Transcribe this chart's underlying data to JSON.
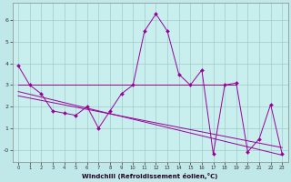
{
  "xlabel": "Windchill (Refroidissement éolien,°C)",
  "bg_color": "#c0e8e8",
  "plot_bg": "#c8eeee",
  "line_color": "#990099",
  "grid_color": "#a0cccc",
  "main_line_x": [
    0,
    1,
    2,
    3,
    4,
    5,
    6,
    7,
    8,
    9,
    10,
    11,
    12,
    13,
    14,
    15,
    16,
    17,
    18,
    19,
    20,
    21,
    22,
    23
  ],
  "main_line_y": [
    3.9,
    3.0,
    2.6,
    1.8,
    1.7,
    1.6,
    2.0,
    1.0,
    1.8,
    2.6,
    3.0,
    5.5,
    6.3,
    5.5,
    3.5,
    3.0,
    3.7,
    -0.2,
    3.0,
    3.1,
    -0.1,
    0.5,
    2.1,
    -0.2
  ],
  "flat_line_x": [
    0,
    19
  ],
  "flat_line_y": [
    3.0,
    3.0
  ],
  "slope_line1_x": [
    0,
    23
  ],
  "slope_line1_y": [
    2.7,
    -0.25
  ],
  "slope_line2_x": [
    0,
    23
  ],
  "slope_line2_y": [
    2.5,
    0.1
  ],
  "ylim": [
    -0.55,
    6.8
  ],
  "xlim": [
    -0.5,
    23.5
  ],
  "yticks": [
    0,
    1,
    2,
    3,
    4,
    5,
    6
  ],
  "ytick_labels": [
    "-0",
    "1",
    "2",
    "3",
    "4",
    "5",
    "6"
  ],
  "xticks": [
    0,
    1,
    2,
    3,
    4,
    5,
    6,
    7,
    8,
    9,
    10,
    11,
    12,
    13,
    14,
    15,
    16,
    17,
    18,
    19,
    20,
    21,
    22,
    23
  ]
}
